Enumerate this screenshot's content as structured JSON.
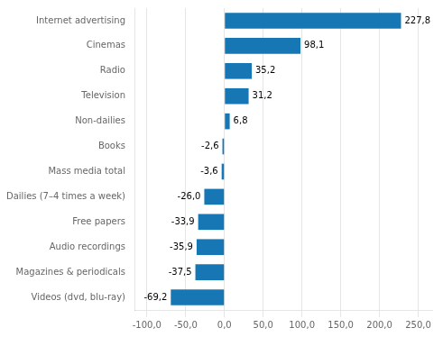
{
  "chart_data": {
    "type": "bar",
    "orientation": "horizontal",
    "categories": [
      "Videos (dvd, blu-ray)",
      "Magazines & periodicals",
      "Audio recordings",
      "Free papers",
      "Dailies (7–4 times a week)",
      "Mass media total",
      "Books",
      "Non-dailies",
      "Television",
      "Radio",
      "Cinemas",
      "Internet advertising"
    ],
    "values": [
      -69.2,
      -37.5,
      -35.9,
      -33.9,
      -26.0,
      -3.6,
      -2.6,
      6.8,
      31.2,
      35.2,
      98.1,
      227.8
    ],
    "value_labels": [
      "-69,2",
      "-37,5",
      "-35,9",
      "-33,9",
      "-26,0",
      "-3,6",
      "-2,6",
      "6,8",
      "31,2",
      "35,2",
      "98,1",
      "227,8"
    ],
    "data_labels": true,
    "color": "#1777b4",
    "xlim": [
      -115,
      268
    ],
    "xticks": [
      {
        "value": -100,
        "label": "-100,0"
      },
      {
        "value": -50,
        "label": "-50,0"
      },
      {
        "value": 0,
        "label": "0,0"
      },
      {
        "value": 50,
        "label": "50,0"
      },
      {
        "value": 100,
        "label": "100,0"
      },
      {
        "value": 150,
        "label": "150,0"
      },
      {
        "value": 200,
        "label": "200,0"
      },
      {
        "value": 250,
        "label": "250,0"
      }
    ],
    "grid": true
  }
}
